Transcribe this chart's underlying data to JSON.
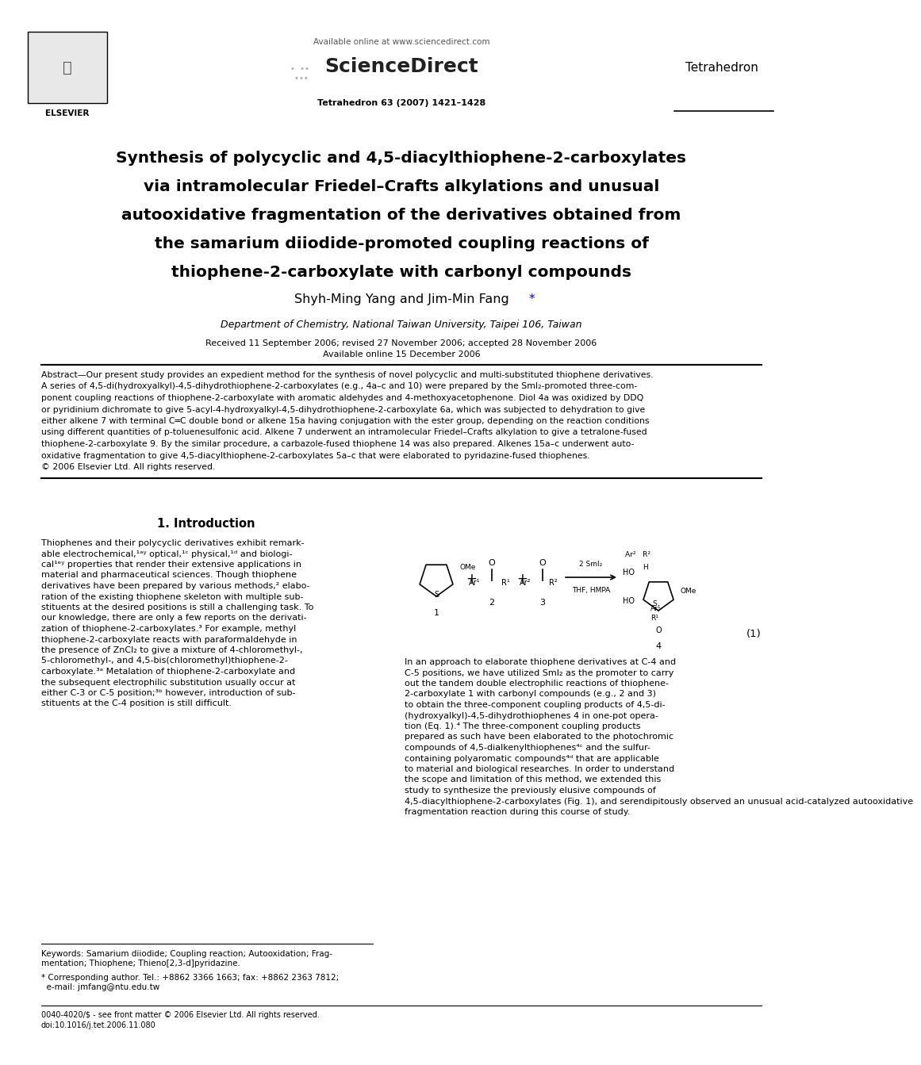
{
  "page_width": 9.92,
  "page_height": 13.23,
  "bg_color": "#ffffff",
  "header_available": "Available online at www.sciencedirect.com",
  "header_sciencedirect": "ScienceDirect",
  "header_journal_ref": "Tetrahedron 63 (2007) 1421–1428",
  "header_journal_name": "Tetrahedron",
  "header_elsevier": "ELSEVIER",
  "title_line1": "Synthesis of polycyclic and 4,5-diacylthiophene-2-carboxylates",
  "title_line2": "via intramolecular Friedel–Crafts alkylations and unusual",
  "title_line3": "autooxidative fragmentation of the derivatives obtained from",
  "title_line4": "the samarium diiodide-promoted coupling reactions of",
  "title_line5": "thiophene-2-carboxylate with carbonyl compounds",
  "author_main": "Shyh-Ming Yang and Jim-Min Fang",
  "affiliation": "Department of Chemistry, National Taiwan University, Taipei 106, Taiwan",
  "received_line1": "Received 11 September 2006; revised 27 November 2006; accepted 28 November 2006",
  "received_line2": "Available online 15 December 2006",
  "abstract_text_line1": "Abstract—Our present study provides an expedient method for the synthesis of novel polycyclic and multi-substituted thiophene derivatives.",
  "abstract_text_line2": "A series of 4,5-di(hydroxyalkyl)-4,5-dihydrothiophene-2-carboxylates (e.g., 4a–c and 10) were prepared by the SmI₂-promoted three-com-",
  "abstract_text_line3": "ponent coupling reactions of thiophene-2-carboxylate with aromatic aldehydes and 4-methoxyacetophenone. Diol 4a was oxidized by DDQ",
  "abstract_text_line4": "or pyridinium dichromate to give 5-acyl-4-hydroxyalkyl-4,5-dihydrothiophene-2-carboxylate 6a, which was subjected to dehydration to give",
  "abstract_text_line5": "either alkene 7 with terminal C═C double bond or alkene 15a having conjugation with the ester group, depending on the reaction conditions",
  "abstract_text_line6": "using different quantities of p-toluenesulfonic acid. Alkene 7 underwent an intramolecular Friedel–Crafts alkylation to give a tetralone-fused",
  "abstract_text_line7": "thiophene-2-carboxylate 9. By the similar procedure, a carbazole-fused thiophene 14 was also prepared. Alkenes 15a–c underwent auto-",
  "abstract_text_line8": "oxidative fragmentation to give 4,5-diacylthiophene-2-carboxylates 5a–c that were elaborated to pyridazine-fused thiophenes.",
  "abstract_copyright": "© 2006 Elsevier Ltd. All rights reserved.",
  "section1": "1. Introduction",
  "intro_col1_lines": [
    "Thiophenes and their polycyclic derivatives exhibit remark-",
    "able electrochemical,¹ᵃʸ optical,¹ᶜ physical,¹ᵈ and biologi-",
    "cal¹ᵉʸ properties that render their extensive applications in",
    "material and pharmaceutical sciences. Though thiophene",
    "derivatives have been prepared by various methods,² elabo-",
    "ration of the existing thiophene skeleton with multiple sub-",
    "stituents at the desired positions is still a challenging task. To",
    "our knowledge, there are only a few reports on the derivati-",
    "zation of thiophene-2-carboxylates.³ For example, methyl",
    "thiophene-2-carboxylate reacts with paraformaldehyde in",
    "the presence of ZnCl₂ to give a mixture of 4-chloromethyl-,",
    "5-chloromethyl-, and 4,5-bis(chloromethyl)thiophene-2-",
    "carboxylate.³ᵃ Metalation of thiophene-2-carboxylate and",
    "the subsequent electrophilic substitution usually occur at",
    "either C-3 or C-5 position;³ᵇ however, introduction of sub-",
    "stituents at the C-4 position is still difficult."
  ],
  "intro_col2_lines": [
    "In an approach to elaborate thiophene derivatives at C-4 and",
    "C-5 positions, we have utilized SmI₂ as the promoter to carry",
    "out the tandem double electrophilic reactions of thiophene-",
    "2-carboxylate 1 with carbonyl compounds (e.g., 2 and 3)",
    "to obtain the three-component coupling products of 4,5-di-",
    "(hydroxyalkyl)-4,5-dihydrothiophenes 4 in one-pot opera-",
    "tion (Eq. 1).⁴ The three-component coupling products",
    "prepared as such have been elaborated to the photochromic",
    "compounds of 4,5-dialkenylthiophenes⁴ᶜ and the sulfur-",
    "containing polyaromatic compounds⁴ᵈ that are applicable",
    "to material and biological researches. In order to understand",
    "the scope and limitation of this method, we extended this",
    "study to synthesize the previously elusive compounds of",
    "4,5-diacylthiophene-2-carboxylates (Fig. 1), and serendipitously observed an unusual acid-catalyzed autooxidative",
    "fragmentation reaction during this course of study."
  ],
  "keywords_line1": "Keywords: Samarium diiodide; Coupling reaction; Autooxidation; Frag-",
  "keywords_line2": "mentation; Thiophene; Thieno[2,3-d]pyridazine.",
  "footnote_star": "* Corresponding author. Tel.: +8862 3366 1663; fax: +8862 2363 7812;",
  "footnote_email": "  e-mail: jmfang@ntu.edu.tw",
  "footer_line1": "0040-4020/$ - see front matter © 2006 Elsevier Ltd. All rights reserved.",
  "footer_line2": "doi:10.1016/j.tet.2006.11.080",
  "eq_number": "(1)"
}
